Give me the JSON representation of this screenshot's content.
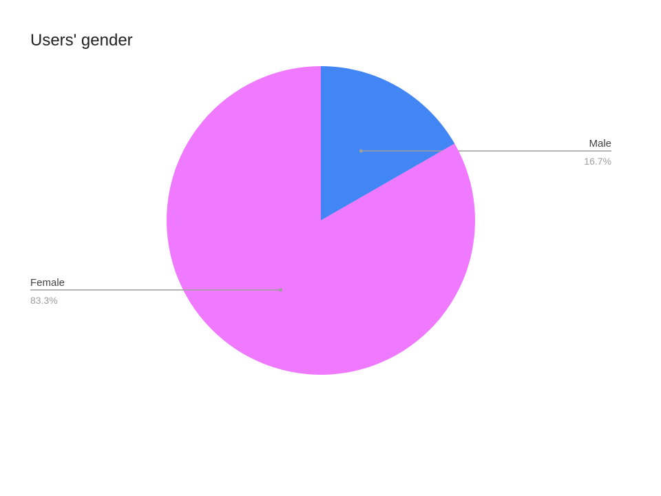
{
  "chart_data": {
    "type": "pie",
    "title": "Users' gender",
    "slices": [
      {
        "label": "Male",
        "value": 16.7,
        "percent_label": "16.7%",
        "color": "#4285f4",
        "label_side": "right"
      },
      {
        "label": "Female",
        "value": 83.3,
        "percent_label": "83.3%",
        "color": "#ef79ff",
        "label_side": "left"
      }
    ],
    "start_angle_deg": 0,
    "direction": "clockwise",
    "leader_line_color": "#9e9e9e"
  }
}
